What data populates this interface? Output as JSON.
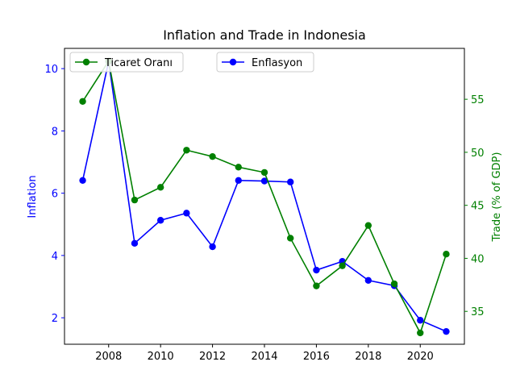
{
  "chart_data": {
    "type": "line",
    "title": "Inflation and Trade in Indonesia",
    "xlabel": "",
    "x": [
      2007,
      2008,
      2009,
      2010,
      2011,
      2012,
      2013,
      2014,
      2015,
      2016,
      2017,
      2018,
      2019,
      2020,
      2021
    ],
    "x_ticks": [
      "2008",
      "2010",
      "2012",
      "2014",
      "2016",
      "2018",
      "2020"
    ],
    "xlim": [
      2006.3,
      2021.7
    ],
    "y_left": {
      "label": "Inflation",
      "color": "#0000ff",
      "ylim": [
        1.15,
        10.65
      ],
      "ticks": [
        "2",
        "4",
        "6",
        "8",
        "10"
      ]
    },
    "y_right": {
      "label": "Trade (% of GDP)",
      "color": "#008000",
      "ylim": [
        31.9,
        59.8
      ],
      "ticks": [
        "35",
        "40",
        "45",
        "50",
        "55"
      ]
    },
    "series": [
      {
        "name": "Enflasyon",
        "axis": "left",
        "color": "#0000ff",
        "values": [
          6.41,
          10.23,
          4.39,
          5.13,
          5.36,
          4.28,
          6.41,
          6.39,
          6.36,
          3.53,
          3.81,
          3.2,
          3.03,
          1.92,
          1.56
        ]
      },
      {
        "name": "Ticaret Oranı",
        "axis": "right",
        "color": "#008000",
        "values": [
          54.8,
          58.6,
          45.5,
          46.7,
          50.2,
          49.6,
          48.6,
          48.1,
          41.9,
          37.4,
          39.3,
          43.1,
          37.6,
          32.97,
          40.4
        ]
      }
    ],
    "legends": [
      {
        "position": "upper-left",
        "entries": [
          "Ticaret Oranı"
        ]
      },
      {
        "position": "upper-center",
        "entries": [
          "Enflasyon"
        ]
      }
    ],
    "grid": false
  }
}
